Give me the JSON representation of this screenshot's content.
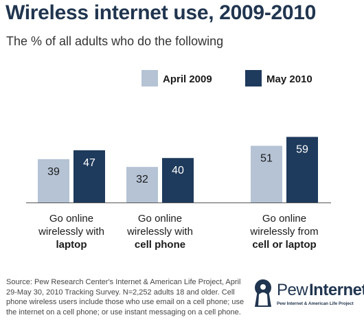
{
  "chart_data": {
    "type": "bar",
    "title": "Wireless internet use, 2009-2010",
    "subtitle": "The % of all adults who do the following",
    "ylim": [
      0,
      70
    ],
    "grid": false,
    "legend_position": "top-right",
    "categories": [
      {
        "line1": "Go online",
        "line2": "wirelessly with",
        "line3": "laptop"
      },
      {
        "line1": "Go online",
        "line2": "wirelessly with",
        "line3": "cell phone"
      },
      {
        "line1": "Go online",
        "line2": "wirelessly from",
        "line3": "cell or laptop"
      }
    ],
    "series": [
      {
        "name": "April 2009",
        "color": "#b5c3d5",
        "label_color": "#1a1a1a",
        "values": [
          39,
          32,
          51
        ]
      },
      {
        "name": "May 2010",
        "color": "#1e3a5c",
        "label_color": "#ffffff",
        "values": [
          47,
          40,
          59
        ]
      }
    ]
  },
  "source": "Source: Pew Research Center's Internet & American Life Project, April 29-May 30, 2010 Tracking Survey. N=2,252 adults 18 and older. Cell phone wireless users include those who use email on a cell phone; use the internet on a cell phone; or use instant messaging on a cell phone.",
  "logo": {
    "pew": "Pew",
    "internet": "Internet",
    "tagline": "Pew Internet & American Life Project"
  }
}
